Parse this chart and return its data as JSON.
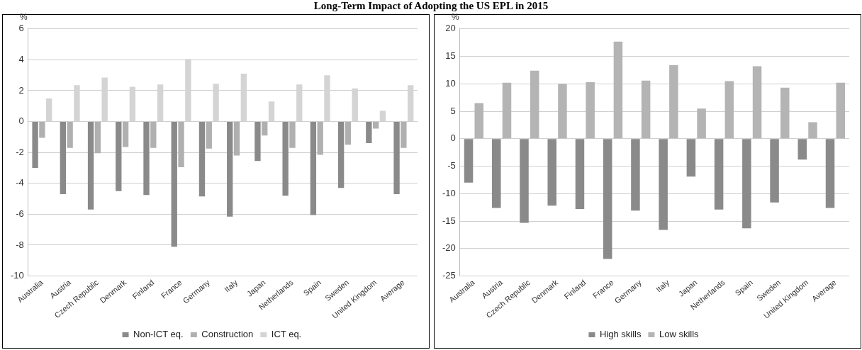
{
  "chart_data": [
    {
      "type": "bar",
      "title": "Long-Term Impact of Adopting the US EPL in 2015",
      "ylabel": "%",
      "categories": [
        "Australia",
        "Austria",
        "Czech Republic",
        "Denmark",
        "Finland",
        "France",
        "Germany",
        "Italy",
        "Japan",
        "Netherlands",
        "Spain",
        "Sweden",
        "United Kingdom",
        "Average"
      ],
      "series": [
        {
          "name": "Non-ICT eq.",
          "color": "#8a8a8a",
          "values": [
            -3.0,
            -4.7,
            -5.7,
            -4.5,
            -4.75,
            -8.1,
            -4.85,
            -6.15,
            -2.55,
            -4.8,
            -6.05,
            -4.3,
            -1.4,
            -4.7
          ]
        },
        {
          "name": "Construction",
          "color": "#b0b0b0",
          "values": [
            -1.05,
            -1.7,
            -2.05,
            -1.65,
            -1.7,
            -2.95,
            -1.75,
            -2.2,
            -0.9,
            -1.7,
            -2.15,
            -1.5,
            -0.45,
            -1.7
          ]
        },
        {
          "name": "ICT eq.",
          "color": "#d4d4d4",
          "values": [
            1.5,
            2.35,
            2.85,
            2.25,
            2.4,
            4.05,
            2.45,
            3.1,
            1.3,
            2.4,
            3.0,
            2.15,
            0.7,
            2.35
          ]
        }
      ],
      "ylim": [
        -10,
        6
      ],
      "yticks": [
        -10,
        -8,
        -6,
        -4,
        -2,
        0,
        2,
        4,
        6
      ],
      "grid": "y",
      "legend": "bottom"
    },
    {
      "type": "bar",
      "ylabel": "%",
      "categories": [
        "Australia",
        "Austria",
        "Czech Republic",
        "Denmark",
        "Finland",
        "France",
        "Germany",
        "Italy",
        "Japan",
        "Netherlands",
        "Spain",
        "Sweden",
        "United Kingdom",
        "Average"
      ],
      "series": [
        {
          "name": "High skills",
          "color": "#8a8a8a",
          "values": [
            -8.0,
            -12.6,
            -15.3,
            -12.2,
            -12.8,
            -21.9,
            -13.1,
            -16.6,
            -6.9,
            -12.9,
            -16.3,
            -11.6,
            -3.8,
            -12.6
          ]
        },
        {
          "name": "Low skills",
          "color": "#b4b4b4",
          "values": [
            6.5,
            10.2,
            12.4,
            10.0,
            10.3,
            17.7,
            10.6,
            13.4,
            5.5,
            10.5,
            13.2,
            9.3,
            3.0,
            10.2
          ]
        }
      ],
      "ylim": [
        -25,
        20
      ],
      "yticks": [
        -25,
        -20,
        -15,
        -10,
        -5,
        0,
        5,
        10,
        15,
        20
      ],
      "grid": "y",
      "legend": "bottom"
    }
  ]
}
